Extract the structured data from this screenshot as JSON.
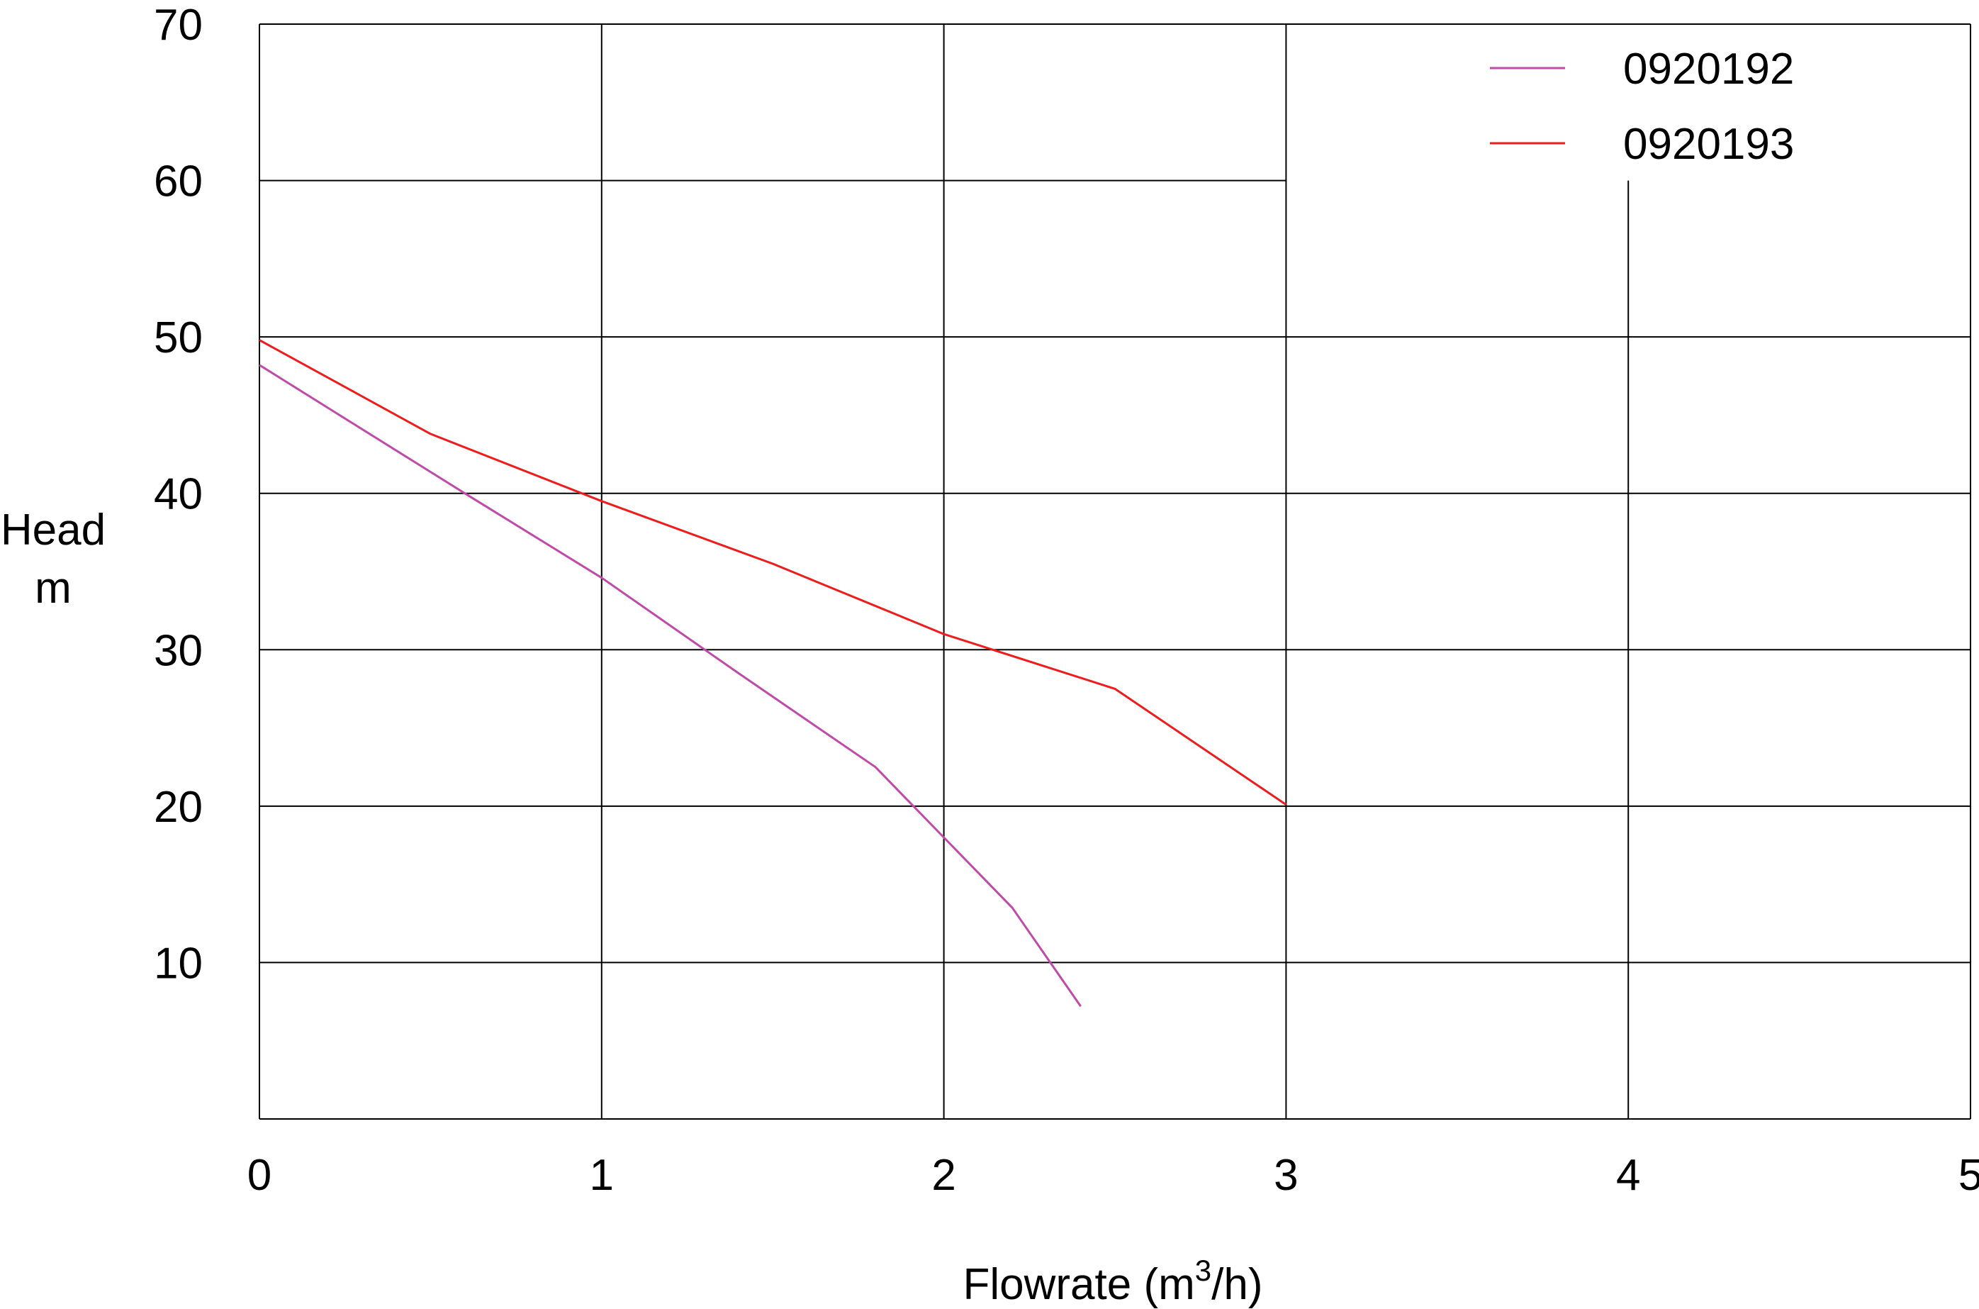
{
  "chart_data": {
    "type": "line",
    "xlabel": "Flowrate (m",
    "xlabel_sup": "3",
    "xlabel_end": "/h)",
    "ylabel_line1": "Head",
    "ylabel_line2": "m",
    "xlim": [
      0,
      5
    ],
    "ylim": [
      0,
      70
    ],
    "x_ticks": [
      "0",
      "1",
      "2",
      "3",
      "4",
      "5"
    ],
    "y_ticks": [
      "10",
      "20",
      "30",
      "40",
      "50",
      "60",
      "70"
    ],
    "grid": true,
    "legend_position": "top-right",
    "series": [
      {
        "name": "0920192",
        "color": "#c04aa8",
        "points": [
          [
            0,
            48.2
          ],
          [
            0.6,
            40
          ],
          [
            1.0,
            34.6
          ],
          [
            1.4,
            28.5
          ],
          [
            1.8,
            22.5
          ],
          [
            2.0,
            18
          ],
          [
            2.2,
            13.5
          ],
          [
            2.4,
            7.2
          ]
        ]
      },
      {
        "name": "0920193",
        "color": "#ee1c1c",
        "points": [
          [
            0,
            49.8
          ],
          [
            0.5,
            43.8
          ],
          [
            1.0,
            39.5
          ],
          [
            1.5,
            35.5
          ],
          [
            2.0,
            31
          ],
          [
            2.5,
            27.5
          ],
          [
            3.0,
            20.1
          ]
        ]
      }
    ]
  }
}
